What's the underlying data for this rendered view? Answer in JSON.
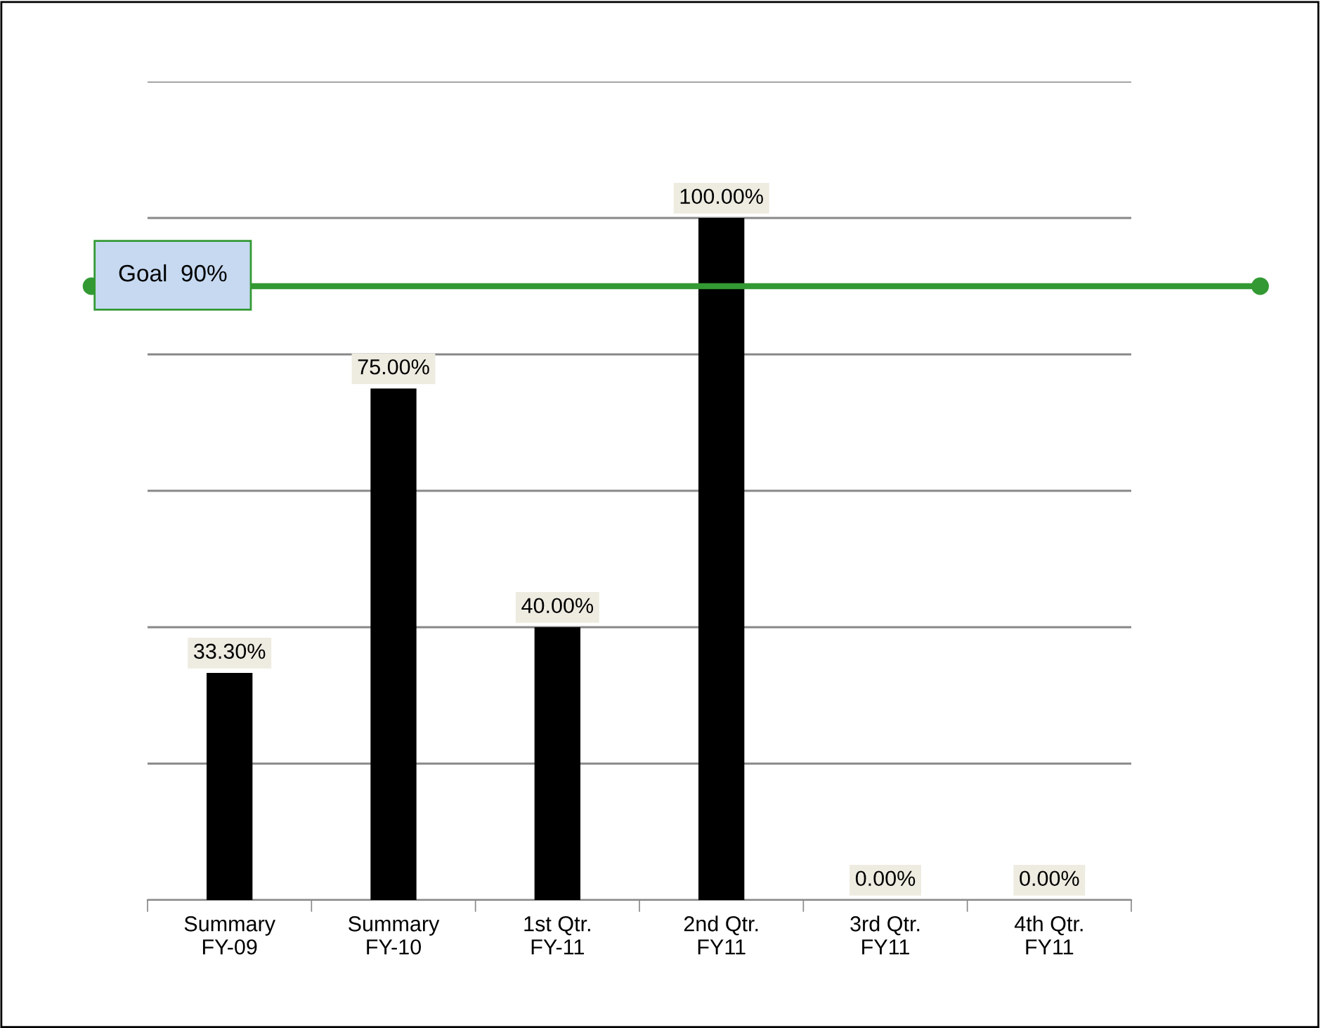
{
  "chart_data": {
    "type": "bar",
    "categories": [
      "Summary\nFY-09",
      "Summary\nFY-10",
      "1st Qtr.\nFY-11",
      "2nd Qtr.\nFY11",
      "3rd Qtr.\nFY11",
      "4th Qtr.\nFY11"
    ],
    "values": [
      33.3,
      75,
      40,
      100,
      0,
      0
    ],
    "value_labels": [
      "33.30%",
      "75.00%",
      "40.00%",
      "100.00%",
      "0.00%",
      "0.00%"
    ],
    "color": "#000000",
    "ylim": [
      0,
      120
    ],
    "yticks": [
      {
        "value": 0,
        "label": null
      },
      {
        "value": 20,
        "label": null
      },
      {
        "value": 40,
        "label": null
      },
      {
        "value": 60,
        "label": null
      },
      {
        "value": 80,
        "label": null
      },
      {
        "value": 100,
        "label": null
      },
      {
        "value": 120,
        "label": null
      }
    ],
    "grid": "y",
    "tick_labels": "x",
    "ref_lines": [
      {
        "axis": "y",
        "value": 90,
        "label": "Goal  90%",
        "color": "#339933"
      }
    ]
  }
}
